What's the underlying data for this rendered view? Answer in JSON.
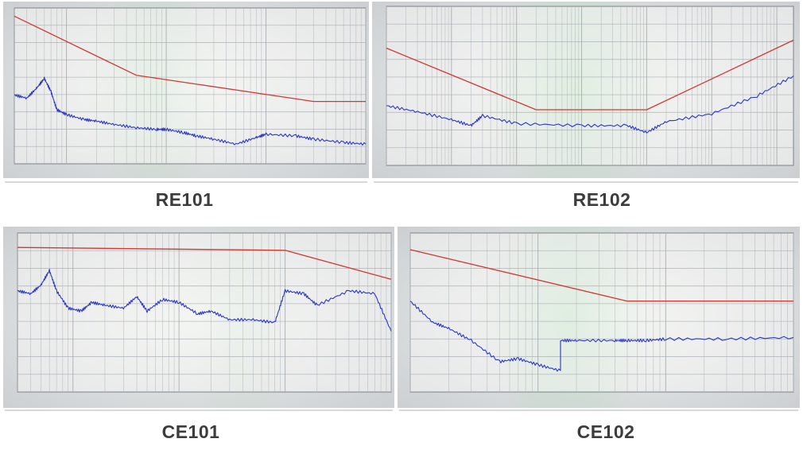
{
  "captions": {
    "re101": "RE101",
    "re102": "RE102",
    "ce101": "CE101",
    "ce102": "CE102"
  },
  "colors": {
    "screen_bg": "#f1f3f0",
    "grid": "#a9aeb4",
    "limit": "#cc3a36",
    "trace": "#2b36c4",
    "green_tint": "#9fd6a9"
  },
  "chart_data": [
    {
      "id": "RE101",
      "type": "line",
      "log_x": true,
      "xlim": [
        30,
        100000
      ],
      "ylim": [
        0,
        190
      ],
      "grid": true,
      "xlabel": "",
      "ylabel": "",
      "series": [
        {
          "role": "limit",
          "x": [
            30,
            500,
            30000,
            100000
          ],
          "y": [
            180,
            108,
            76,
            76
          ]
        },
        {
          "role": "measurement",
          "x": [
            30,
            40,
            50,
            60,
            70,
            80,
            100,
            150,
            200,
            300,
            500,
            800,
            1000,
            1500,
            2000,
            3000,
            5000,
            8000,
            10000,
            20000,
            30000,
            60000,
            100000
          ],
          "y": [
            84,
            80,
            92,
            104,
            88,
            66,
            60,
            54,
            52,
            48,
            44,
            42,
            42,
            38,
            34,
            30,
            24,
            32,
            36,
            34,
            30,
            26,
            24
          ]
        }
      ]
    },
    {
      "id": "RE102",
      "type": "line",
      "log_x": true,
      "xlim": [
        10000,
        18000000000
      ],
      "ylim": [
        0,
        160
      ],
      "grid": true,
      "xlabel": "",
      "ylabel": "",
      "series": [
        {
          "role": "limit",
          "x": [
            10000,
            2000000,
            100000000,
            18000000000
          ],
          "y": [
            118,
            56,
            56,
            126
          ]
        },
        {
          "role": "measurement",
          "x": [
            10000,
            30000,
            100000,
            200000,
            300000,
            1000000,
            10000000,
            50000000,
            100000000,
            200000000,
            1000000000,
            5000000000,
            18000000000
          ],
          "y": [
            60,
            54,
            46,
            40,
            50,
            42,
            40,
            40,
            33,
            44,
            52,
            70,
            90
          ]
        }
      ]
    },
    {
      "id": "CE101",
      "type": "line",
      "log_x": true,
      "xlim": [
        30,
        100000
      ],
      "ylim": [
        0,
        110
      ],
      "grid": true,
      "xlabel": "",
      "ylabel": "",
      "series": [
        {
          "role": "limit",
          "x": [
            30,
            10000,
            100000
          ],
          "y": [
            100,
            98,
            78
          ]
        },
        {
          "role": "measurement",
          "x": [
            30,
            40,
            50,
            60,
            70,
            90,
            120,
            150,
            200,
            300,
            400,
            500,
            700,
            1000,
            1500,
            2000,
            3000,
            5000,
            8000,
            10000,
            15000,
            20000,
            40000,
            70000,
            100000
          ],
          "y": [
            70,
            68,
            74,
            84,
            70,
            58,
            56,
            62,
            60,
            58,
            66,
            56,
            64,
            62,
            54,
            56,
            50,
            50,
            48,
            70,
            68,
            60,
            70,
            68,
            42
          ]
        }
      ]
    },
    {
      "id": "CE102",
      "type": "line",
      "log_x": true,
      "xlim": [
        10000,
        10000000
      ],
      "ylim": [
        0,
        105
      ],
      "grid": true,
      "xlabel": "",
      "ylabel": "",
      "series": [
        {
          "role": "limit",
          "x": [
            10000,
            500000,
            10000000
          ],
          "y": [
            94,
            60,
            60
          ]
        },
        {
          "role": "measurement",
          "x": [
            10000,
            15000,
            20000,
            30000,
            50000,
            70000,
            100000,
            150000,
            150001,
            200000,
            400000,
            500000,
            700000,
            1000000,
            3000000,
            10000000
          ],
          "y": [
            60,
            46,
            42,
            34,
            20,
            22,
            18,
            14,
            34,
            34,
            34,
            34,
            34,
            35,
            35,
            36
          ]
        }
      ]
    }
  ]
}
